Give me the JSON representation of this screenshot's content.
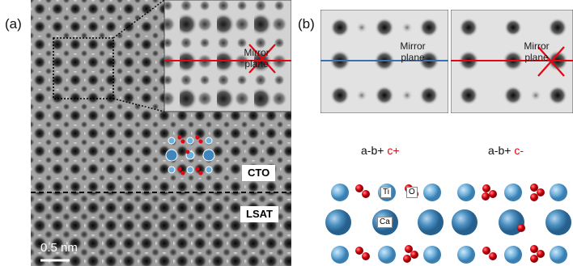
{
  "panel_a": {
    "label": "(a)",
    "inset": {
      "mirror_label": "Mirror\nplane",
      "mirror_line_color": "#e30613",
      "cross_color": "#e30613"
    },
    "cto_tag": "CTO",
    "lsat_tag": "LSAT",
    "scale_bar": "0.5 nm"
  },
  "panel_b": {
    "label": "(b)",
    "sim_left": {
      "mirror_label": "Mirror\nplane",
      "line_color": "#3b6fb6"
    },
    "sim_right": {
      "mirror_label": "Mirror\nplane",
      "line_color": "#e30613",
      "cross_color": "#e30613"
    },
    "tilt_left": {
      "prefix": "a-b+ ",
      "suffix": "c+"
    },
    "tilt_right": {
      "prefix": "a-b+ ",
      "suffix": "c-"
    },
    "atom_labels": {
      "ti": "Ti",
      "o": "O",
      "ca": "Ca"
    },
    "colors": {
      "ca_atom": "#4a8fc0",
      "ti_atom": "#74b3dc",
      "o_atom": "#e30613"
    }
  }
}
